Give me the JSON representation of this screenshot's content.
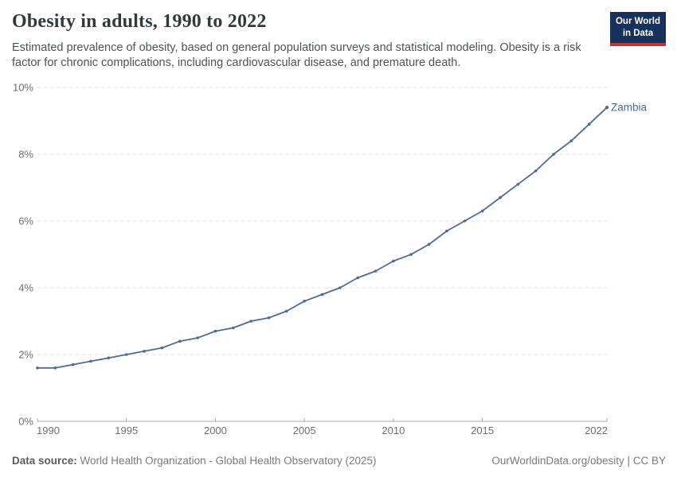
{
  "header": {
    "title": "Obesity in adults, 1990 to 2022",
    "subtitle": "Estimated prevalence of obesity, based on general population surveys and statistical modeling. Obesity is a risk factor for chronic complications, including cardiovascular disease, and premature death."
  },
  "logo": {
    "line1": "Our World",
    "line2": "in Data",
    "bg_color": "#16325c",
    "stripe_color": "#c5332b"
  },
  "chart_data": {
    "type": "line",
    "title": "Obesity in adults, 1990 to 2022",
    "xlabel": "",
    "ylabel": "",
    "x": [
      1990,
      1991,
      1992,
      1993,
      1994,
      1995,
      1996,
      1997,
      1998,
      1999,
      2000,
      2001,
      2002,
      2003,
      2004,
      2005,
      2006,
      2007,
      2008,
      2009,
      2010,
      2011,
      2012,
      2013,
      2014,
      2015,
      2016,
      2017,
      2018,
      2019,
      2020,
      2021,
      2022
    ],
    "series": [
      {
        "name": "Zambia",
        "color": "#4C6A9C",
        "values": [
          1.6,
          1.6,
          1.7,
          1.8,
          1.9,
          2.0,
          2.1,
          2.2,
          2.4,
          2.5,
          2.7,
          2.8,
          3.0,
          3.1,
          3.3,
          3.6,
          3.8,
          4.0,
          4.3,
          4.5,
          4.8,
          5.0,
          5.3,
          5.7,
          6.0,
          6.3,
          6.7,
          7.1,
          7.5,
          8.0,
          8.4,
          8.9,
          9.4
        ]
      }
    ],
    "ylim": [
      0,
      10
    ],
    "yticks": [
      0,
      2,
      4,
      6,
      8,
      10
    ],
    "ytick_suffix": "%",
    "xticks": [
      1990,
      1995,
      2000,
      2005,
      2010,
      2015,
      2022
    ],
    "grid": true,
    "legend": "end-of-line-label",
    "colors": {
      "gridline": "#dddddd",
      "axis": "#a8a8a8",
      "tick_label": "#6d6d6d"
    }
  },
  "footer": {
    "source_label": "Data source:",
    "source_text": "World Health Organization - Global Health Observatory (2025)",
    "credit": "OurWorldinData.org/obesity | CC BY"
  }
}
